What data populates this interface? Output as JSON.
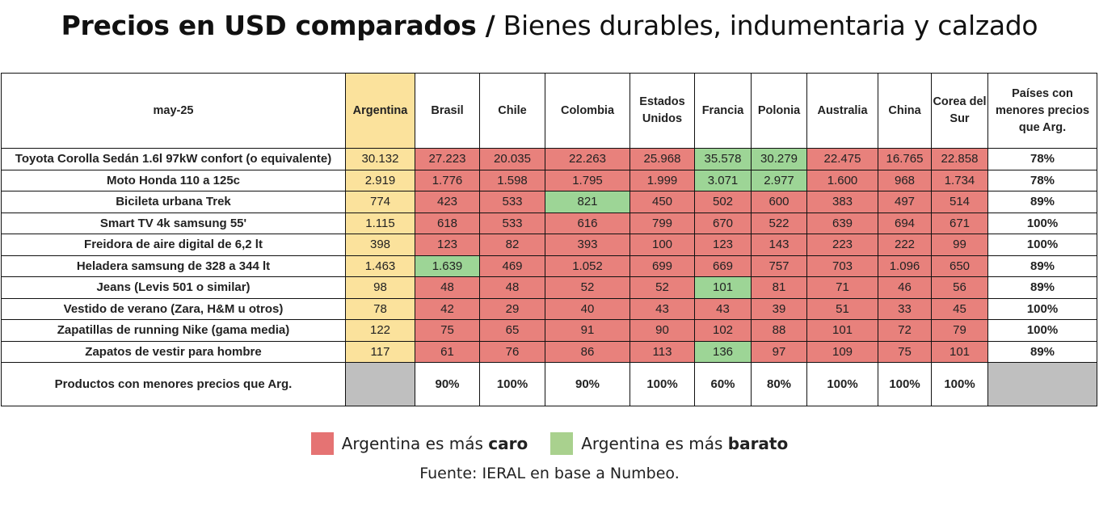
{
  "title": {
    "bold": "Precios en USD comparados /",
    "regular": " Bienes durables, indumentaria y calzado"
  },
  "colors": {
    "caro": "#e8817c",
    "barato": "#9dd596",
    "argentina": "#fbe29c",
    "empty": "#bfbfbf",
    "legend_caro": "#e57373",
    "legend_barato": "#a9d18e"
  },
  "chart_data": {
    "type": "table",
    "corner_label": "may-25",
    "columns": [
      "Argentina",
      "Brasil",
      "Chile",
      "Colombia",
      "Estados Unidos",
      "Francia",
      "Polonia",
      "Australia",
      "China",
      "Corea del Sur"
    ],
    "last_column": "Países con menores precios que Arg.",
    "rows": [
      {
        "product": "Toyota Corolla Sedán 1.6l 97kW confort (o equivalente)",
        "values": [
          "30.132",
          "27.223",
          "20.035",
          "22.263",
          "25.968",
          "35.578",
          "30.279",
          "22.475",
          "16.765",
          "22.858"
        ],
        "pct": "78%"
      },
      {
        "product": "Moto Honda 110 a 125c",
        "values": [
          "2.919",
          "1.776",
          "1.598",
          "1.795",
          "1.999",
          "3.071",
          "2.977",
          "1.600",
          "968",
          "1.734"
        ],
        "pct": "78%"
      },
      {
        "product": "Bicileta urbana Trek",
        "values": [
          "774",
          "423",
          "533",
          "821",
          "450",
          "502",
          "600",
          "383",
          "497",
          "514"
        ],
        "pct": "89%"
      },
      {
        "product": "Smart TV 4k samsung 55'",
        "values": [
          "1.115",
          "618",
          "533",
          "616",
          "799",
          "670",
          "522",
          "639",
          "694",
          "671"
        ],
        "pct": "100%"
      },
      {
        "product": "Freidora de aire digital de 6,2 lt",
        "values": [
          "398",
          "123",
          "82",
          "393",
          "100",
          "123",
          "143",
          "223",
          "222",
          "99"
        ],
        "pct": "100%"
      },
      {
        "product": "Heladera samsung de 328 a 344 lt",
        "values": [
          "1.463",
          "1.639",
          "469",
          "1.052",
          "699",
          "669",
          "757",
          "703",
          "1.096",
          "650"
        ],
        "pct": "89%"
      },
      {
        "product": "Jeans (Levis 501 o similar)",
        "values": [
          "98",
          "48",
          "48",
          "52",
          "52",
          "101",
          "81",
          "71",
          "46",
          "56"
        ],
        "pct": "89%"
      },
      {
        "product": "Vestido de verano (Zara, H&M u otros)",
        "values": [
          "78",
          "42",
          "29",
          "40",
          "43",
          "43",
          "39",
          "51",
          "33",
          "45"
        ],
        "pct": "100%"
      },
      {
        "product": "Zapatillas de running Nike (gama media)",
        "values": [
          "122",
          "75",
          "65",
          "91",
          "90",
          "102",
          "88",
          "101",
          "72",
          "79"
        ],
        "pct": "100%"
      },
      {
        "product": "Zapatos de vestir para hombre",
        "values": [
          "117",
          "61",
          "76",
          "86",
          "113",
          "136",
          "97",
          "109",
          "75",
          "101"
        ],
        "pct": "89%"
      }
    ],
    "footer": {
      "label": "Productos con menores precios que Arg.",
      "values": [
        "",
        "90%",
        "100%",
        "90%",
        "100%",
        "60%",
        "80%",
        "100%",
        "100%",
        "100%"
      ]
    }
  },
  "legend": {
    "caro_prefix": "Argentina es más ",
    "caro_bold": "caro",
    "barato_prefix": "Argentina es más ",
    "barato_bold": "barato"
  },
  "source": "Fuente: IERAL en base a Numbeo."
}
